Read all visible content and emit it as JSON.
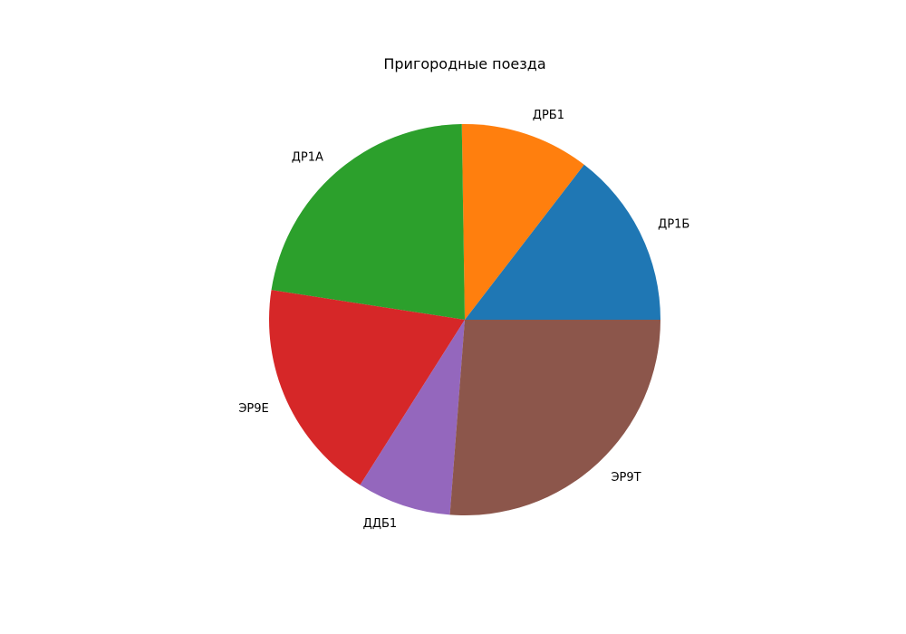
{
  "chart_data": {
    "type": "pie",
    "title": "Пригородные поезда",
    "categories": [
      "ДР1Б",
      "ДРБ1",
      "ДР1А",
      "ЭР9Е",
      "ДДБ1",
      "ЭР9Т"
    ],
    "values": [
      15,
      11,
      23,
      19,
      8,
      27
    ],
    "colors": [
      "#1f77b4",
      "#ff7f0e",
      "#2ca02c",
      "#d62728",
      "#9467bd",
      "#8c564b"
    ],
    "start_angle_deg": 0,
    "direction": "counterclockwise",
    "legend": "none"
  }
}
